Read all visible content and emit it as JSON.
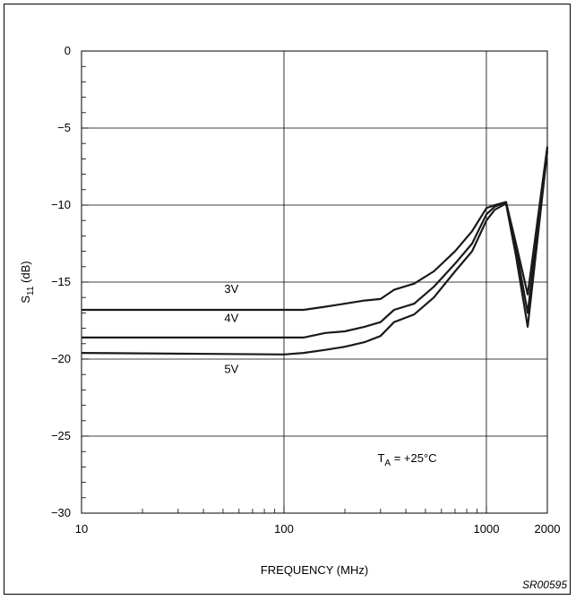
{
  "chart_data": {
    "type": "line",
    "xlabel": "FREQUENCY (MHz)",
    "ylabel": "S11 (dB)",
    "ylabel_main": "S",
    "ylabel_sub": "11",
    "ylabel_unit": " (dB)",
    "xscale": "log",
    "xlim": [
      10,
      2000
    ],
    "ylim": [
      -30,
      0
    ],
    "x_ticks": [
      10,
      100,
      1000,
      2000
    ],
    "x_tick_labels": [
      "10",
      "100",
      "1000",
      "2000"
    ],
    "y_ticks": [
      0,
      -5,
      -10,
      -15,
      -20,
      -25,
      -30
    ],
    "y_tick_labels": [
      "0",
      "−5",
      "−10",
      "−15",
      "−20",
      "−25",
      "−30"
    ],
    "grid": true,
    "series": [
      {
        "name": "3V",
        "x": [
          10,
          100,
          125,
          160,
          200,
          250,
          300,
          350,
          440,
          550,
          700,
          850,
          1000,
          1100,
          1250,
          1400,
          1600,
          2000
        ],
        "y": [
          -16.8,
          -16.8,
          -16.8,
          -16.6,
          -16.4,
          -16.2,
          -16.1,
          -15.5,
          -15.1,
          -14.3,
          -13.0,
          -11.7,
          -10.2,
          -10.0,
          -9.8,
          -12.5,
          -15.8,
          -6.2
        ]
      },
      {
        "name": "4V",
        "x": [
          10,
          100,
          125,
          160,
          200,
          250,
          300,
          350,
          440,
          550,
          700,
          850,
          1000,
          1100,
          1250,
          1400,
          1600,
          2000
        ],
        "y": [
          -18.6,
          -18.6,
          -18.6,
          -18.3,
          -18.2,
          -17.9,
          -17.6,
          -16.8,
          -16.4,
          -15.3,
          -13.8,
          -12.5,
          -10.6,
          -10.1,
          -9.8,
          -12.8,
          -17.0,
          -6.3
        ]
      },
      {
        "name": "5V",
        "x": [
          10,
          100,
          125,
          160,
          200,
          250,
          300,
          350,
          440,
          550,
          700,
          850,
          1000,
          1100,
          1250,
          1400,
          1600,
          2000
        ],
        "y": [
          -19.6,
          -19.7,
          -19.6,
          -19.4,
          -19.2,
          -18.9,
          -18.5,
          -17.6,
          -17.1,
          -16.0,
          -14.3,
          -13.0,
          -11.0,
          -10.3,
          -9.9,
          -13.3,
          -17.9,
          -6.5
        ]
      }
    ],
    "series_labels": [
      {
        "text": "3V",
        "x": 55,
        "y": -15.7
      },
      {
        "text": "4V",
        "x": 55,
        "y": -17.6
      },
      {
        "text": "5V",
        "x": 55,
        "y": -20.9
      }
    ],
    "annotation": {
      "main": "T",
      "sub": "A",
      "rest": " = +25°C",
      "x": 290,
      "y": -26.7
    },
    "figure_code": "SR00595",
    "colors": {
      "line": "#1a1a1a",
      "grid": "#000000",
      "background": "#ffffff"
    }
  }
}
